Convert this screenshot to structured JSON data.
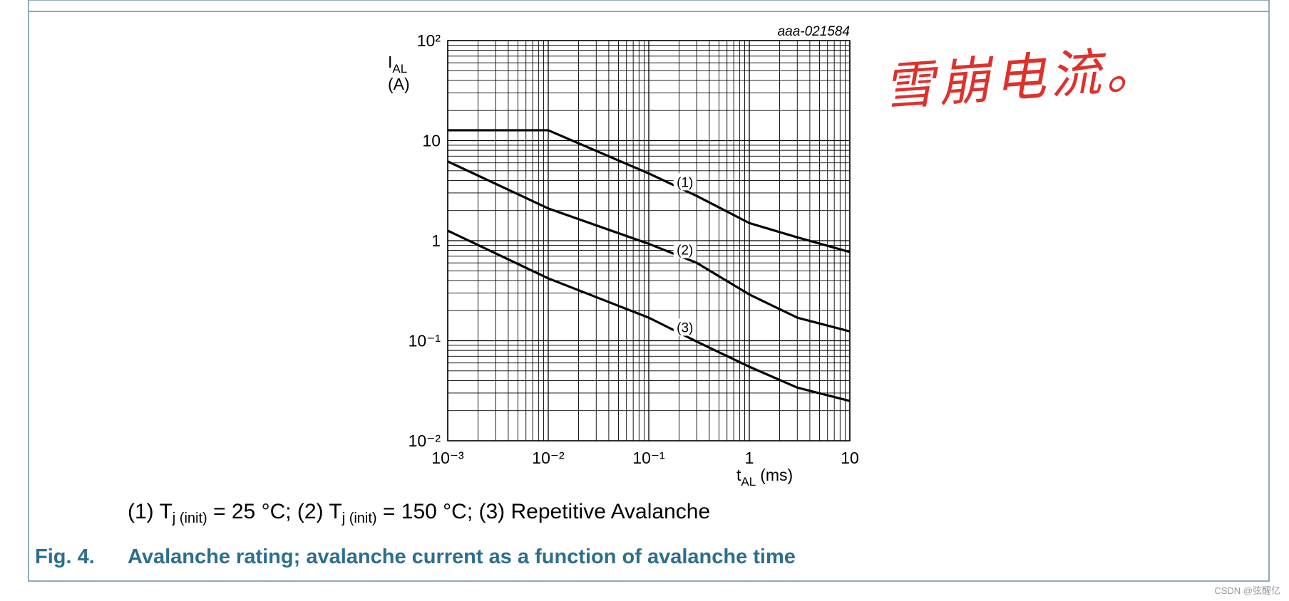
{
  "chart_data": {
    "type": "line",
    "tag": "aaa-021584",
    "ylabel": {
      "symbol": "I",
      "subscript": "AL",
      "unit": "(A)"
    },
    "xlabel": {
      "symbol": "t",
      "subscript": "AL",
      "unit": "(ms)"
    },
    "xscale": "log",
    "yscale": "log",
    "grid": true,
    "minor_grid": true,
    "x": [
      0.001,
      0.01,
      0.1,
      0.3,
      1,
      3,
      10
    ],
    "series": [
      {
        "name": "(1)",
        "color": "#000000",
        "values": [
          12.7,
          12.7,
          4.7,
          2.8,
          1.5,
          1.08,
          0.77
        ]
      },
      {
        "name": "(2)",
        "color": "#000000",
        "values": [
          6.2,
          2.1,
          0.93,
          0.6,
          0.29,
          0.17,
          0.124
        ]
      },
      {
        "name": "(3)",
        "color": "#000000",
        "values": [
          1.26,
          0.42,
          0.17,
          0.098,
          0.055,
          0.034,
          0.025
        ]
      }
    ],
    "xlim": [
      0.001,
      10
    ],
    "ylim": [
      0.01,
      100
    ],
    "xticks": [
      {
        "value": 0.001,
        "label": "10⁻³"
      },
      {
        "value": 0.01,
        "label": "10⁻²"
      },
      {
        "value": 0.1,
        "label": "10⁻¹"
      },
      1,
      10
    ],
    "yticks": [
      {
        "value": 0.01,
        "label": "10⁻²"
      },
      {
        "value": 0.1,
        "label": "10⁻¹"
      },
      1,
      10,
      {
        "value": 100,
        "label": "10²"
      }
    ]
  },
  "caption_parts": [
    "(1) T",
    "j (init)",
    " = 25 °C; (2) T",
    "j (init)",
    " = 150 °C; (3) Repetitive Avalanche"
  ],
  "figure": {
    "number": "Fig. 4.",
    "title": "Avalanche rating; avalanche current as a function of avalanche time"
  },
  "annotation": "雪崩电流。",
  "watermark": "CSDN @弦醒亿"
}
